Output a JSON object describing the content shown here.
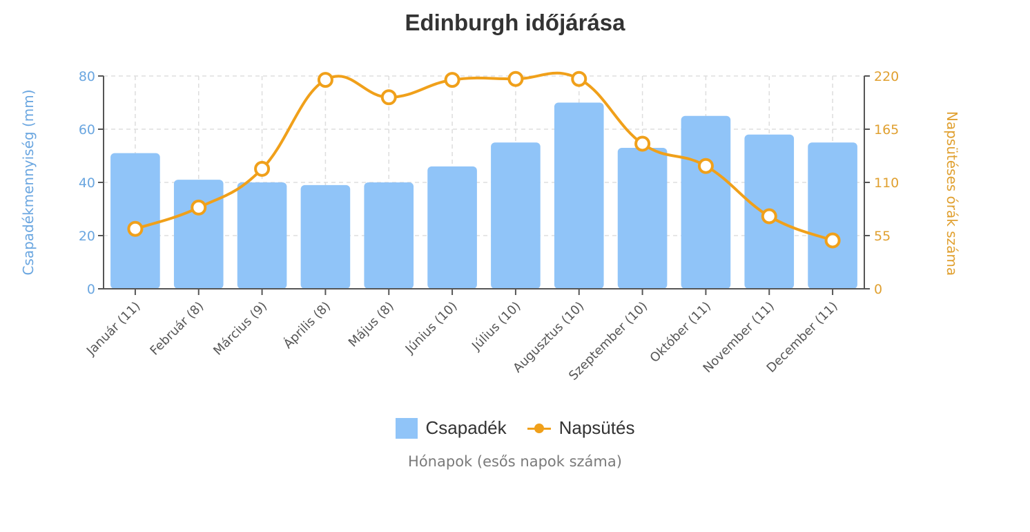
{
  "title": "Edinburgh időjárása",
  "legend": {
    "bar_label": "Csapadék",
    "line_label": "Napsütés"
  },
  "axes": {
    "x_title": "Hónapok (esős napok száma)",
    "y_left_title": "Csapadékmennyiség (mm)",
    "y_right_title": "Napsütéses órák száma",
    "y_left_ticks": [
      "0",
      "20",
      "40",
      "60",
      "80"
    ],
    "y_right_ticks": [
      "0",
      "55",
      "110",
      "165",
      "220"
    ]
  },
  "colors": {
    "bar": "#90c4f8",
    "line": "#f0a01a",
    "left_axis_text": "#6aa6e0",
    "right_axis_text": "#e0a030",
    "axis": "#555555",
    "grid": "#dddddd"
  },
  "chart_data": {
    "type": "bar",
    "title": "Edinburgh időjárása",
    "xlabel": "Hónapok (esős napok száma)",
    "ylabel": "Csapadékmennyiség (mm)",
    "y2label": "Napsütéses órák száma",
    "ylim": [
      0,
      80
    ],
    "y2lim": [
      0,
      220
    ],
    "grid": true,
    "legend_position": "bottom",
    "categories": [
      "Január (11)",
      "Február (8)",
      "Március (9)",
      "Április (8)",
      "Május (8)",
      "Június (10)",
      "Július (10)",
      "Augusztus (10)",
      "Szeptember (10)",
      "Október (11)",
      "November (11)",
      "December (11)"
    ],
    "series": [
      {
        "name": "Csapadék",
        "type": "bar",
        "axis": "left",
        "values": [
          51,
          41,
          40,
          39,
          40,
          46,
          55,
          70,
          53,
          65,
          58,
          55
        ]
      },
      {
        "name": "Napsütés",
        "type": "line",
        "axis": "right",
        "values": [
          62,
          84,
          124,
          216,
          198,
          216,
          217,
          217,
          150,
          127,
          75,
          50
        ]
      }
    ]
  }
}
